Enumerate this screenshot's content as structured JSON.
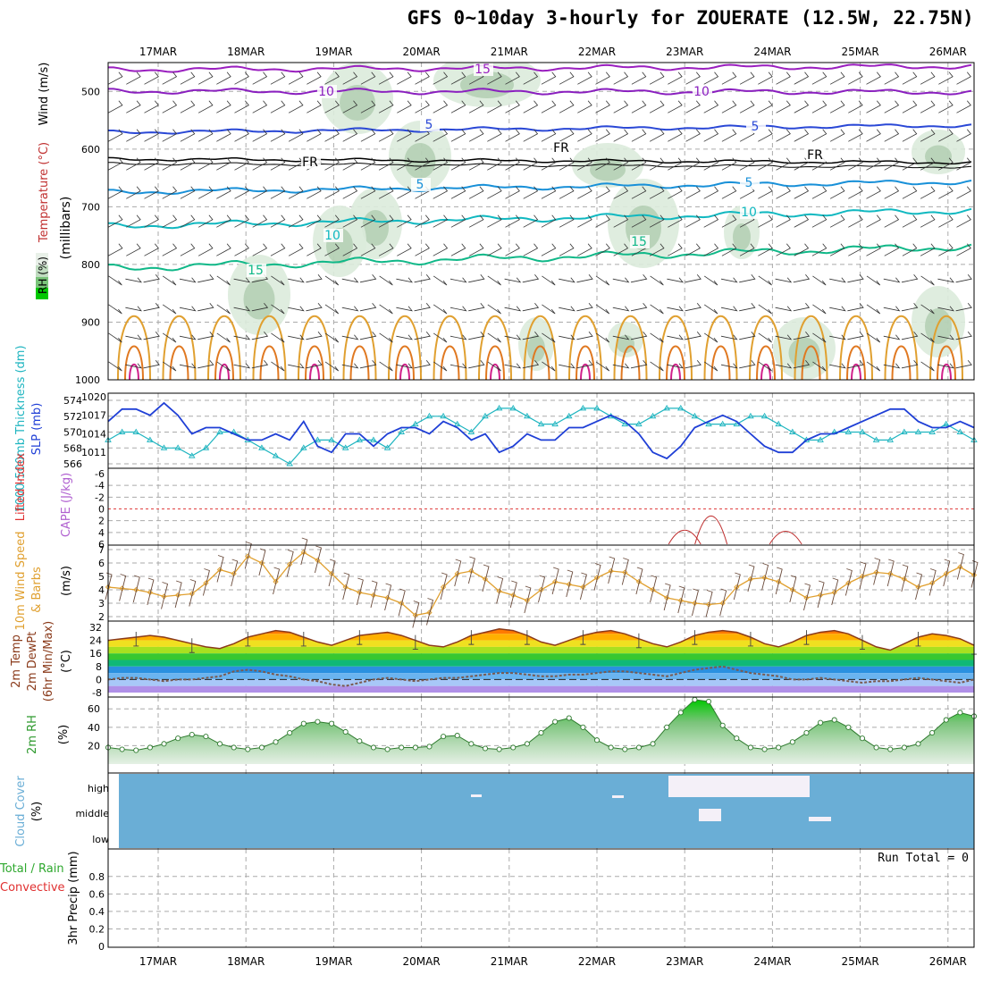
{
  "title": "GFS 0~10day 3-hourly for ZOUERATE (12.5W, 22.75N)",
  "dates": [
    "17MAR",
    "18MAR",
    "19MAR",
    "20MAR",
    "21MAR",
    "22MAR",
    "23MAR",
    "24MAR",
    "25MAR",
    "26MAR"
  ],
  "panels": {
    "upper_air": {
      "labels": {
        "wind": "Wind (m/s)",
        "temperature": "Temperature (°C)",
        "pressure": "(millibars)",
        "rh": "RH (%)"
      },
      "yticks": [
        "500",
        "600",
        "700",
        "800",
        "900",
        "1000"
      ],
      "contour_labels": [
        "15",
        "10",
        "10",
        "5",
        "5",
        "FR",
        "FR",
        "FR",
        "5",
        "5",
        "10",
        "10",
        "15",
        "15"
      ]
    },
    "slp": {
      "labels": {
        "thickness": "1000-500mb Thickness (dm)",
        "slp": "SLP (mb)"
      },
      "left_ticks": [
        "574",
        "572",
        "570",
        "568",
        "566"
      ],
      "right_ticks": [
        "1020",
        "1017",
        "1014",
        "1011"
      ],
      "slp_series": [
        1016,
        1018,
        1018,
        1017,
        1019,
        1017,
        1014,
        1015,
        1015,
        1014,
        1013,
        1013,
        1014,
        1013,
        1016,
        1012,
        1011,
        1014,
        1014,
        1012,
        1014,
        1015,
        1015,
        1014,
        1016,
        1015,
        1013,
        1014,
        1011,
        1012,
        1014,
        1013,
        1013,
        1015,
        1015,
        1016,
        1017,
        1016,
        1014,
        1011,
        1010,
        1012,
        1015,
        1016,
        1017,
        1016,
        1014,
        1012,
        1011,
        1011,
        1013,
        1014,
        1014,
        1015,
        1016,
        1017,
        1018,
        1018,
        1016,
        1015,
        1015,
        1016,
        1015
      ],
      "thickness_series": [
        569,
        570,
        570,
        569,
        568,
        568,
        567,
        568,
        570,
        570,
        569,
        568,
        567,
        566,
        568,
        569,
        569,
        568,
        569,
        569,
        568,
        570,
        571,
        572,
        572,
        571,
        570,
        572,
        573,
        573,
        572,
        571,
        571,
        572,
        573,
        573,
        572,
        571,
        571,
        572,
        573,
        573,
        572,
        571,
        571,
        571,
        572,
        572,
        571,
        570,
        569,
        569,
        570,
        570,
        570,
        569,
        569,
        570,
        570,
        570,
        571,
        570,
        569
      ]
    },
    "cape": {
      "labels": {
        "li": "Lifted Index",
        "cape": "CAPE (J/kg)"
      },
      "yticks": [
        "-6",
        "-4",
        "-2",
        "0",
        "2",
        "4",
        "6"
      ],
      "li_peaks": [
        {
          "day": 6.0,
          "li": 3.6
        },
        {
          "day": 6.3,
          "li": 1.2
        },
        {
          "day": 7.15,
          "li": 3.8
        }
      ]
    },
    "wind10m": {
      "labels": {
        "speed": "10m Wind Speed",
        "barbs": "& Barbs",
        "unit": "(m/s)"
      },
      "yticks": [
        "2",
        "3",
        "4",
        "5",
        "6",
        "7"
      ],
      "speed_series": [
        4.2,
        4.1,
        4.0,
        3.8,
        3.5,
        3.6,
        3.7,
        4.5,
        5.5,
        5.2,
        6.5,
        6.0,
        4.6,
        5.9,
        6.8,
        6.2,
        5.2,
        4.2,
        3.8,
        3.6,
        3.4,
        3.0,
        2.1,
        2.3,
        4.2,
        5.2,
        5.4,
        4.8,
        3.9,
        3.6,
        3.2,
        4.0,
        4.6,
        4.4,
        4.2,
        4.9,
        5.4,
        5.3,
        4.6,
        4.0,
        3.4,
        3.2,
        3.0,
        2.9,
        3.0,
        4.2,
        4.8,
        4.9,
        4.6,
        4.0,
        3.4,
        3.6,
        3.8,
        4.5,
        5.0,
        5.3,
        5.2,
        4.8,
        4.2,
        4.5,
        5.2,
        5.7,
        5.1
      ]
    },
    "temp2m": {
      "labels": {
        "temp": "2m Temp",
        "dewpt": "2m DewPt",
        "minmax": "(6hr Min/Max)",
        "unit": "(°C)"
      },
      "yticks": [
        "32",
        "24",
        "16",
        "8",
        "0",
        "-8"
      ],
      "temp_series": [
        24,
        25,
        26,
        27,
        26,
        24,
        22,
        20,
        19,
        22,
        26,
        28,
        30,
        29,
        26,
        23,
        21,
        24,
        27,
        28,
        29,
        27,
        24,
        21,
        20,
        23,
        27,
        29,
        31,
        30,
        27,
        23,
        21,
        24,
        27,
        29,
        30,
        28,
        25,
        22,
        20,
        23,
        27,
        29,
        30,
        29,
        26,
        22,
        20,
        23,
        27,
        29,
        30,
        28,
        24,
        20,
        18,
        22,
        26,
        28,
        27,
        25,
        21
      ],
      "dewpt_series": [
        0,
        1,
        1,
        0,
        -1,
        0,
        0,
        1,
        2,
        5,
        6,
        5,
        3,
        2,
        0,
        -1,
        -3,
        -4,
        -2,
        0,
        1,
        0,
        -1,
        0,
        1,
        1,
        2,
        3,
        4,
        4,
        3,
        2,
        2,
        3,
        3,
        4,
        5,
        5,
        4,
        3,
        2,
        4,
        6,
        7,
        8,
        6,
        4,
        3,
        2,
        0,
        0,
        1,
        0,
        -1,
        -2,
        -1,
        -1,
        0,
        1,
        0,
        -1,
        -2,
        0
      ]
    },
    "rh2m": {
      "labels": {
        "rh": "2m RH",
        "unit": "(%)"
      },
      "yticks": [
        "60",
        "40",
        "20"
      ],
      "rh_series": [
        18,
        16,
        15,
        18,
        22,
        28,
        32,
        30,
        22,
        18,
        16,
        18,
        24,
        34,
        44,
        46,
        44,
        35,
        25,
        18,
        16,
        18,
        18,
        19,
        30,
        31,
        22,
        17,
        16,
        18,
        22,
        34,
        46,
        50,
        40,
        26,
        18,
        16,
        18,
        22,
        40,
        56,
        70,
        68,
        42,
        28,
        18,
        16,
        18,
        24,
        34,
        45,
        48,
        40,
        28,
        18,
        16,
        18,
        22,
        34,
        48,
        56,
        52
      ]
    },
    "cloud": {
      "labels": {
        "cloud": "Cloud Cover",
        "unit": "(%)",
        "high": "high",
        "middle": "middle",
        "low": "low"
      }
    },
    "precip": {
      "labels": {
        "total": "Total / Rain",
        "convective": "Convective",
        "precip": "3hr Precip (mm)",
        "run_total": "Run Total = 0"
      },
      "yticks": [
        "0.8",
        "0.6",
        "0.4",
        "0.2",
        "0"
      ]
    }
  },
  "colors": {
    "slp": "#1f3fd6",
    "thickness": "#1fb5c0",
    "wind": "#e0a030",
    "temp_line": "#8a3a1a",
    "rh": "#2e9a2e",
    "cloud": "#6aaed6",
    "dewpt": "#7a5a50"
  }
}
